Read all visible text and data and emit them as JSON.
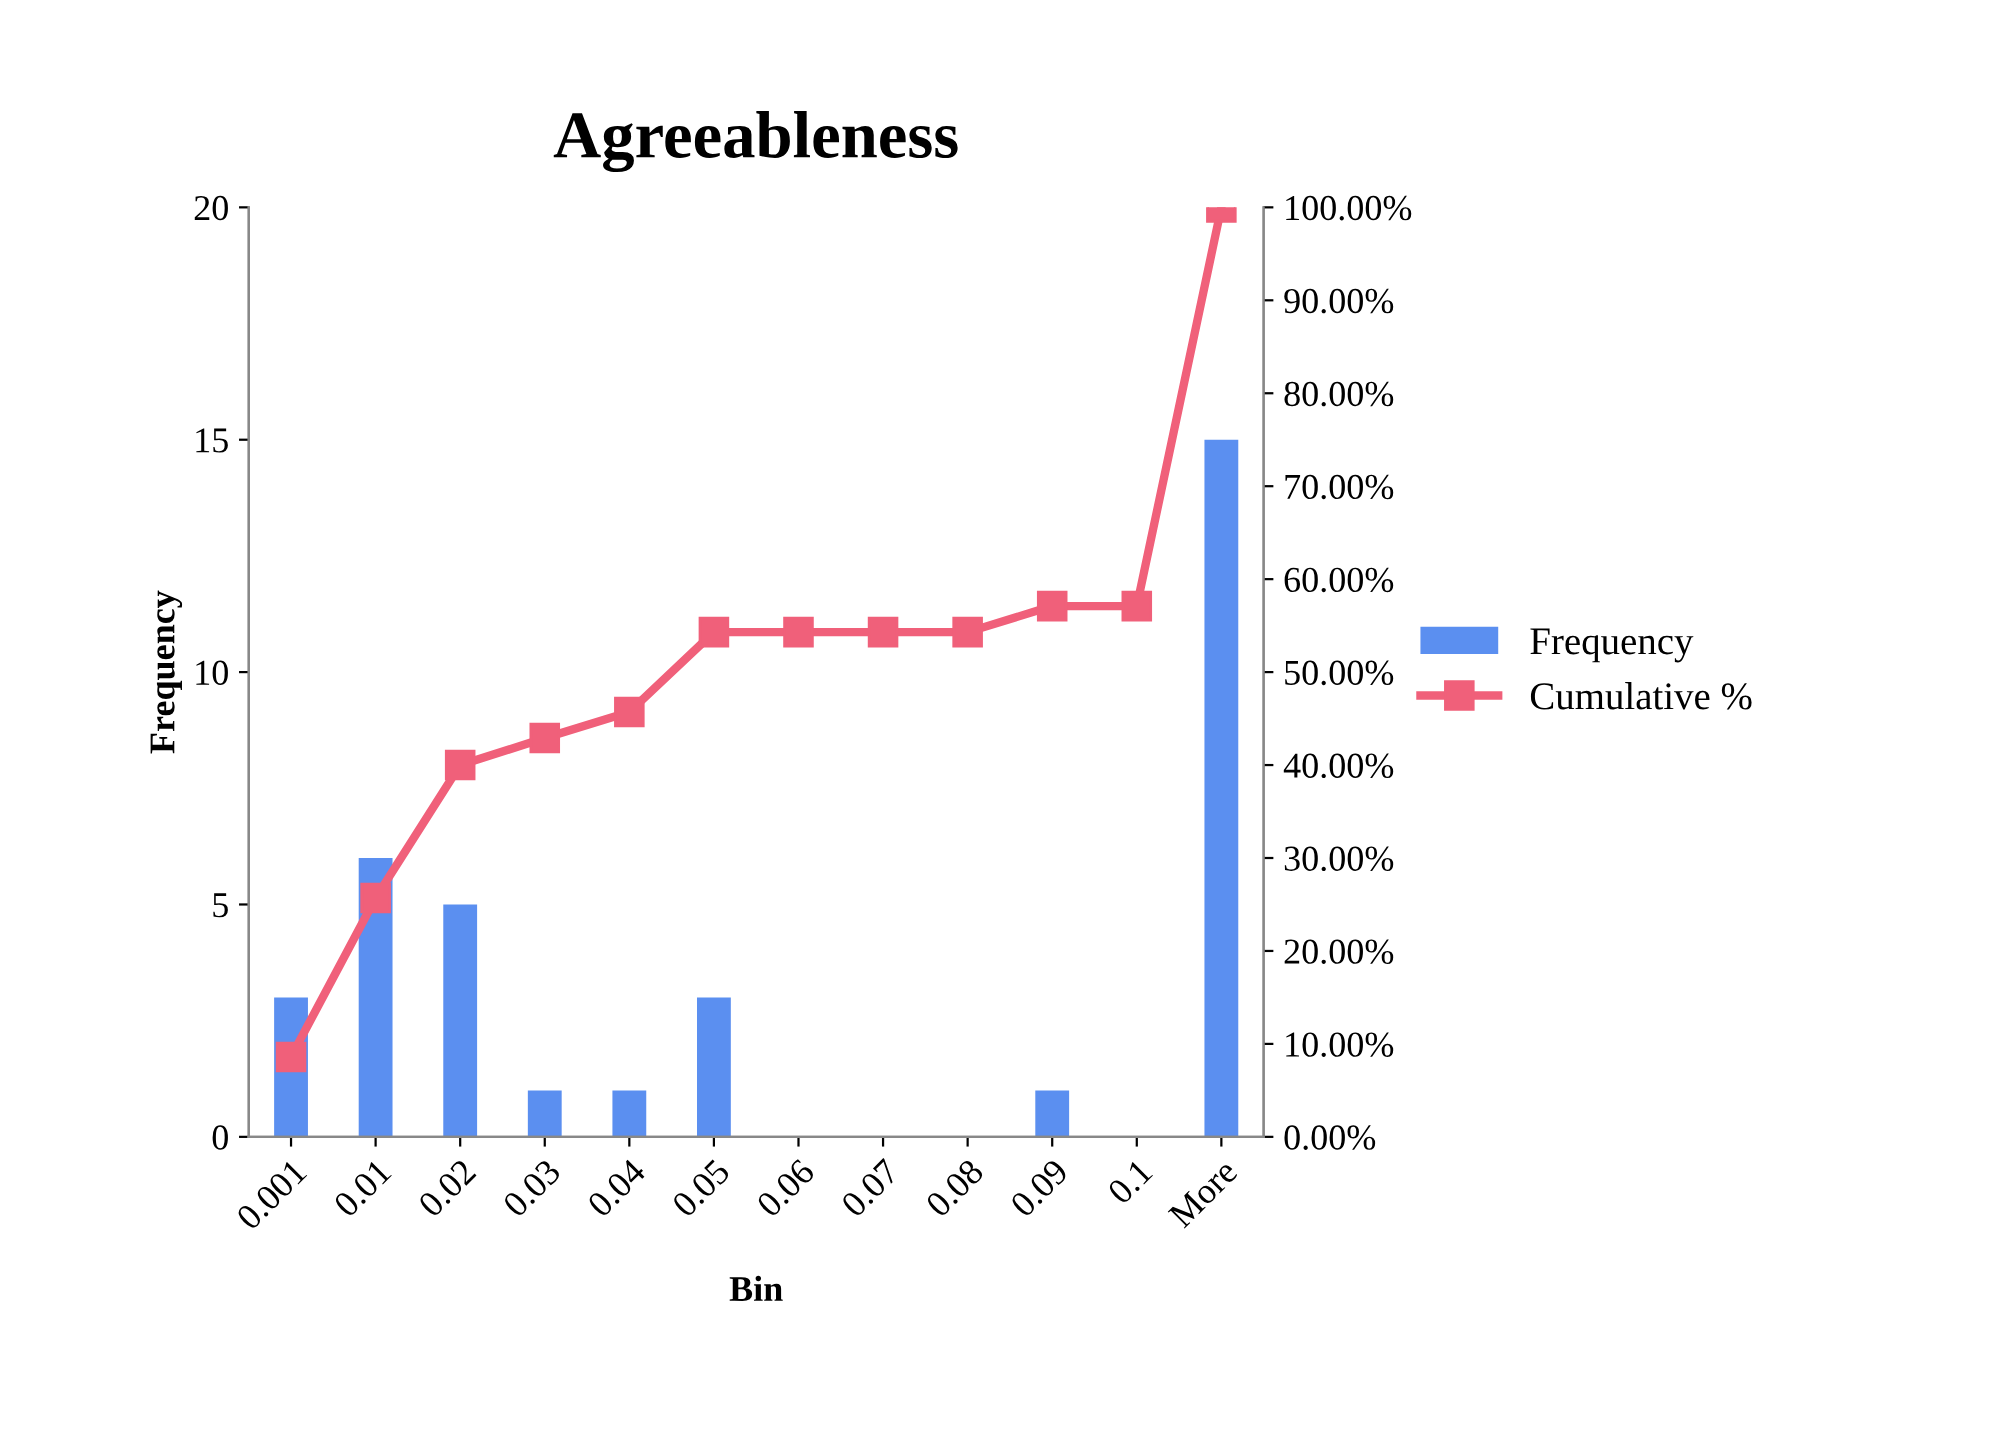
{
  "chart_data": {
    "type": "bar",
    "title": "Agreeableness",
    "xlabel": "Bin",
    "ylabel": "Frequency",
    "categories": [
      "0.001",
      "0.01",
      "0.02",
      "0.03",
      "0.04",
      "0.05",
      "0.06",
      "0.07",
      "0.08",
      "0.09",
      "0.1",
      "More"
    ],
    "series": [
      {
        "name": "Frequency",
        "color": "#5b8ff0",
        "values": [
          3,
          6,
          5,
          1,
          1,
          3,
          0,
          0,
          0,
          1,
          0,
          15
        ]
      },
      {
        "name": "Cumulative %",
        "type": "line",
        "axis": "y2",
        "color": "#f0607a",
        "marker": "square",
        "values": [
          8.6,
          25.7,
          40,
          42.9,
          45.7,
          54.3,
          54.3,
          54.3,
          54.3,
          57.1,
          57.1,
          100
        ]
      }
    ],
    "ylim": [
      0,
      20
    ],
    "yticks": [
      0,
      5,
      10,
      15,
      20
    ],
    "y2lim": [
      0,
      100
    ],
    "y2ticks": [
      {
        "value": 0,
        "label": "0.00%"
      },
      {
        "value": 10,
        "label": "10.00%"
      },
      {
        "value": 20,
        "label": "20.00%"
      },
      {
        "value": 30,
        "label": "30.00%"
      },
      {
        "value": 40,
        "label": "40.00%"
      },
      {
        "value": 50,
        "label": "50.00%"
      },
      {
        "value": 60,
        "label": "60.00%"
      },
      {
        "value": 70,
        "label": "70.00%"
      },
      {
        "value": 80,
        "label": "80.00%"
      },
      {
        "value": 90,
        "label": "90.00%"
      },
      {
        "value": 100,
        "label": "100.00%"
      }
    ],
    "grid": false,
    "legend": "right"
  }
}
